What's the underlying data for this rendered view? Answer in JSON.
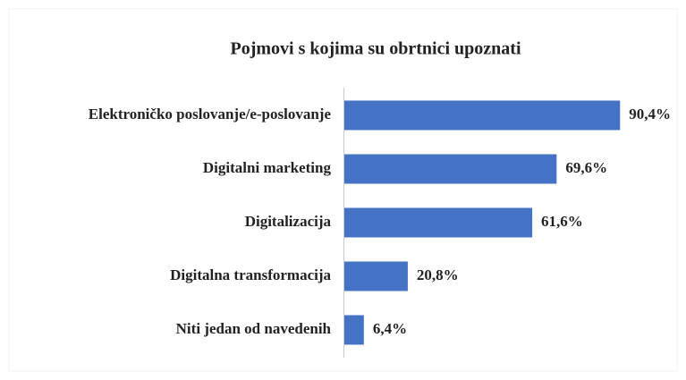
{
  "chart_data": {
    "type": "bar",
    "orientation": "horizontal",
    "title": "Pojmovi s kojima su obrtnici upoznati",
    "categories": [
      "Elektroničko poslovanje/e-poslovanje",
      "Digitalni marketing",
      "Digitalizacija",
      "Digitalna transformacija",
      "Niti jedan od navedenih"
    ],
    "values": [
      90.4,
      69.6,
      61.6,
      20.8,
      6.4
    ],
    "value_labels": [
      "90,4%",
      "69,6%",
      "61,6%",
      "20,8%",
      "6,4%"
    ],
    "color": "#4472c4"
  }
}
